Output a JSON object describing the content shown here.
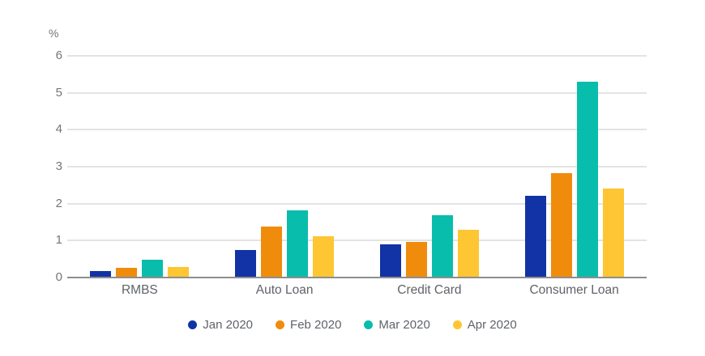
{
  "chart_data": {
    "type": "bar",
    "title": "",
    "xlabel": "",
    "ylabel": "%",
    "categories": [
      "RMBS",
      "Auto Loan",
      "Credit Card",
      "Consumer Loan"
    ],
    "series": [
      {
        "name": "Jan 2020",
        "color": "#1233a5",
        "values": [
          0.18,
          0.75,
          0.9,
          2.21
        ]
      },
      {
        "name": "Feb 2020",
        "color": "#f08c0c",
        "values": [
          0.27,
          1.38,
          0.97,
          2.82
        ]
      },
      {
        "name": "Mar 2020",
        "color": "#09bdac",
        "values": [
          0.49,
          1.81,
          1.68,
          5.3
        ]
      },
      {
        "name": "Apr 2020",
        "color": "#fdc632",
        "values": [
          0.29,
          1.12,
          1.3,
          2.4
        ]
      }
    ],
    "ylim": [
      0,
      6
    ],
    "yticks": [
      0,
      1,
      2,
      3,
      4,
      5,
      6
    ],
    "grid": true,
    "legend_position": "bottom"
  },
  "colors": {
    "background": "#ffffff",
    "gridline": "#e3e3e3",
    "axis_line": "#8e8e8e",
    "tick_text": "#757575",
    "category_text": "#5f6368",
    "legend_text": "#5f6368"
  }
}
